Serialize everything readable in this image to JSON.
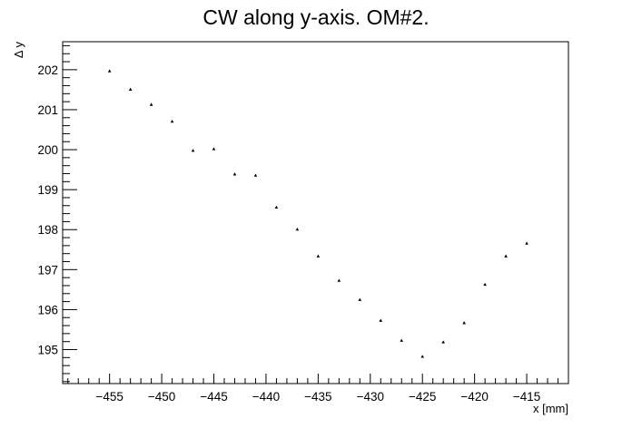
{
  "chart_data": {
    "type": "scatter",
    "title": "CW along y-axis. OM#2.",
    "xlabel": "x [mm]",
    "ylabel": "Δ y",
    "xlim": [
      -459.5,
      -411
    ],
    "ylim": [
      194.15,
      202.7
    ],
    "x_ticks": [
      -455,
      -450,
      -445,
      -440,
      -435,
      -430,
      -425,
      -420,
      -415
    ],
    "x_tick_labels": [
      "−455",
      "−450",
      "−445",
      "−440",
      "−435",
      "−430",
      "−425",
      "−420",
      "−415"
    ],
    "y_ticks": [
      195,
      196,
      197,
      198,
      199,
      200,
      201,
      202
    ],
    "y_tick_labels": [
      "195",
      "196",
      "197",
      "198",
      "199",
      "200",
      "201",
      "202"
    ],
    "grid": false,
    "legend": "none",
    "colors": {
      "marker": "#000000",
      "axis": "#000000"
    },
    "series": [
      {
        "x": [
          -455,
          -453,
          -451,
          -449,
          -447,
          -445,
          -443,
          -441,
          -439,
          -437,
          -435,
          -433,
          -431,
          -429,
          -427,
          -425,
          -423,
          -421,
          -419,
          -417,
          -415
        ],
        "y": [
          201.97,
          201.51,
          201.13,
          200.71,
          199.98,
          200.02,
          199.39,
          199.36,
          198.56,
          198.01,
          197.34,
          196.73,
          196.25,
          195.73,
          195.23,
          194.83,
          195.19,
          195.67,
          196.63,
          197.34,
          197.66
        ]
      }
    ]
  }
}
